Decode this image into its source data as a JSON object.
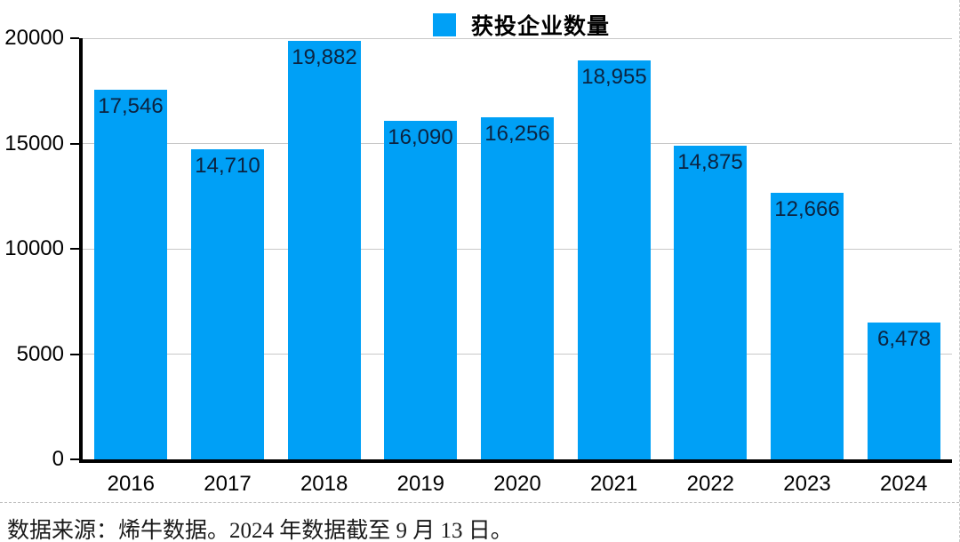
{
  "legend": {
    "label": "获投企业数量"
  },
  "chart_data": {
    "type": "bar",
    "title": "",
    "legend": "获投企业数量",
    "legend_position": "top-center",
    "categories": [
      "2016",
      "2017",
      "2018",
      "2019",
      "2020",
      "2021",
      "2022",
      "2023",
      "2024"
    ],
    "values": [
      17546,
      14710,
      19882,
      16090,
      16256,
      18955,
      14875,
      12666,
      6478
    ],
    "value_labels": [
      "17,546",
      "14,710",
      "19,882",
      "16,090",
      "16,256",
      "18,955",
      "14,875",
      "12,666",
      "6,478"
    ],
    "xlabel": "",
    "ylabel": "",
    "ylim": [
      0,
      20000
    ],
    "yticks": [
      0,
      5000,
      10000,
      15000,
      20000
    ],
    "ytick_labels": [
      "0",
      "5000",
      "10000",
      "15000",
      "20000"
    ],
    "grid": "horizontal",
    "colors": {
      "bar": "#00a0f6",
      "value_label": "#0c2340",
      "gridline": "#c8c8c8",
      "axis": "#000000"
    }
  },
  "footer": {
    "source_text": "数据来源：烯牛数据。2024 年数据截至 9 月 13 日。"
  }
}
